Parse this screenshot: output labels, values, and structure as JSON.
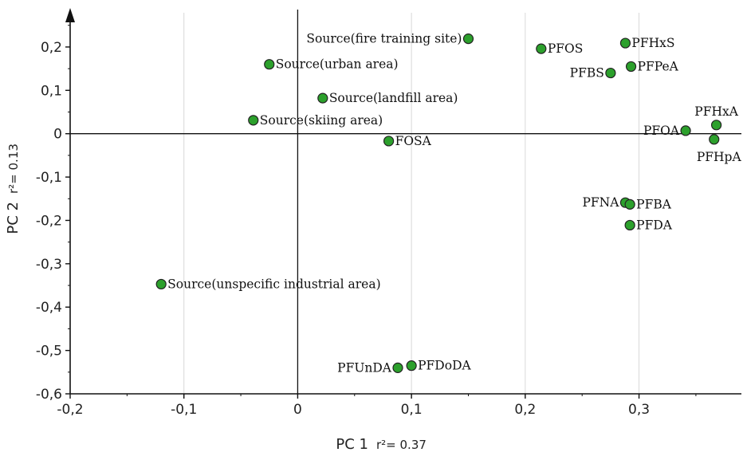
{
  "chart_data": {
    "type": "scatter",
    "title": "",
    "xlabel": "PC 1",
    "xlabel_r2": "r²= 0.37",
    "ylabel": "PC 2",
    "ylabel_r2": "r²= 0.13",
    "xlim": [
      -0.2,
      0.39
    ],
    "ylim": [
      -0.6,
      0.29
    ],
    "xticks": [
      -0.2,
      -0.1,
      0,
      0.1,
      0.2,
      0.3
    ],
    "xtick_labels": [
      "-0,2",
      "-0,1",
      "0",
      "0,1",
      "0,2",
      "0,3"
    ],
    "yticks": [
      -0.6,
      -0.5,
      -0.4,
      -0.3,
      -0.2,
      -0.1,
      0,
      0.1,
      0.2
    ],
    "ytick_labels": [
      "-0,6",
      "-0,5",
      "-0,4",
      "-0,3",
      "-0,2",
      "-0,1",
      "0",
      "0,1",
      "0,2"
    ],
    "grid": "vertical",
    "marker_color": "#2ca02c",
    "points": [
      {
        "label": "Source(fire training site)",
        "x": 0.15,
        "y": 0.219,
        "pos": "left"
      },
      {
        "label": "Source(urban area)",
        "x": -0.025,
        "y": 0.16,
        "pos": "right"
      },
      {
        "label": "Source(landfill area)",
        "x": 0.022,
        "y": 0.082,
        "pos": "right"
      },
      {
        "label": "Source(skiing area)",
        "x": -0.039,
        "y": 0.031,
        "pos": "right"
      },
      {
        "label": "FOSA",
        "x": 0.08,
        "y": -0.017,
        "pos": "right"
      },
      {
        "label": "Source(unspecific industrial area)",
        "x": -0.12,
        "y": -0.347,
        "pos": "right"
      },
      {
        "label": "PFOS",
        "x": 0.214,
        "y": 0.196,
        "pos": "right"
      },
      {
        "label": "PFHxS",
        "x": 0.288,
        "y": 0.209,
        "pos": "right"
      },
      {
        "label": "PFBS",
        "x": 0.275,
        "y": 0.14,
        "pos": "left"
      },
      {
        "label": "PFPeA",
        "x": 0.293,
        "y": 0.155,
        "pos": "right"
      },
      {
        "label": "PFHxA",
        "x": 0.368,
        "y": 0.02,
        "pos": "above"
      },
      {
        "label": "PFOA",
        "x": 0.341,
        "y": 0.007,
        "pos": "left"
      },
      {
        "label": "PFHpA",
        "x": 0.366,
        "y": -0.013,
        "pos": "below"
      },
      {
        "label": "PFNA",
        "x": 0.288,
        "y": -0.159,
        "pos": "left"
      },
      {
        "label": "PFBA",
        "x": 0.292,
        "y": -0.163,
        "pos": "right"
      },
      {
        "label": "PFDA",
        "x": 0.292,
        "y": -0.211,
        "pos": "right"
      },
      {
        "label": "PFUnDA",
        "x": 0.088,
        "y": -0.54,
        "pos": "left"
      },
      {
        "label": "PFDoDA",
        "x": 0.1,
        "y": -0.535,
        "pos": "right"
      }
    ]
  }
}
